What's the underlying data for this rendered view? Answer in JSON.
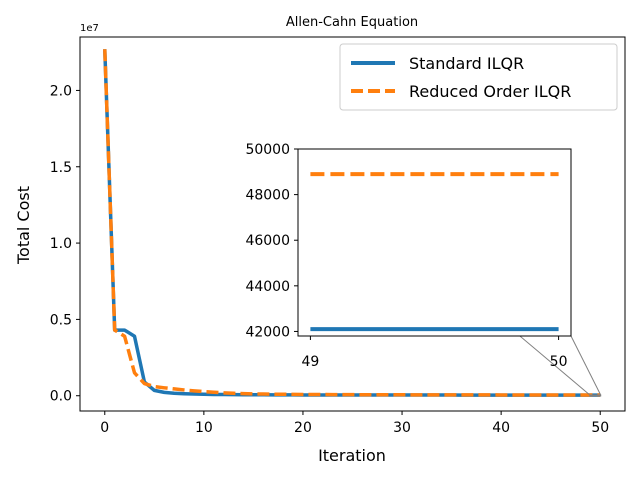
{
  "chart_data": {
    "type": "line",
    "title": "Allen-Cahn Equation",
    "xlabel": "Iteration",
    "ylabel": "Total Cost",
    "offset_text": "1e7",
    "xlim": [
      -2.5,
      52.5
    ],
    "ylim": [
      -0.1,
      2.35
    ],
    "xticks": [
      0,
      10,
      20,
      30,
      40,
      50
    ],
    "yticks": [
      0.0,
      0.5,
      1.0,
      1.5,
      2.0
    ],
    "ytick_labels": [
      "0.0",
      "0.5",
      "1.0",
      "1.5",
      "2.0"
    ],
    "legend_position": "upper-right",
    "grid": false,
    "series": [
      {
        "name": "Standard ILQR",
        "color": "#1f77b4",
        "style": "solid",
        "x": [
          0,
          1,
          2,
          3,
          4,
          5,
          6,
          7,
          8,
          9,
          10,
          11,
          12,
          13,
          14,
          15,
          16,
          17,
          18,
          19,
          20,
          21,
          22,
          23,
          24,
          25,
          26,
          27,
          28,
          29,
          30,
          31,
          32,
          33,
          34,
          35,
          36,
          37,
          38,
          39,
          40,
          41,
          42,
          43,
          44,
          45,
          46,
          47,
          48,
          49,
          50
        ],
        "values": [
          2.27,
          0.43,
          0.43,
          0.39,
          0.09,
          0.035,
          0.022,
          0.016,
          0.013,
          0.011,
          0.0095,
          0.0085,
          0.0078,
          0.0072,
          0.0068,
          0.0064,
          0.0061,
          0.0058,
          0.0056,
          0.0054,
          0.0052,
          0.0051,
          0.005,
          0.0049,
          0.0048,
          0.0047,
          0.0047,
          0.0046,
          0.0046,
          0.0045,
          0.0045,
          0.0045,
          0.0044,
          0.0044,
          0.0044,
          0.0044,
          0.0043,
          0.0043,
          0.0043,
          0.0043,
          0.0043,
          0.0043,
          0.0043,
          0.0042,
          0.0042,
          0.0042,
          0.0042,
          0.0042,
          0.0042,
          0.0042,
          0.0042
        ]
      },
      {
        "name": "Reduced Order ILQR",
        "color": "#ff7f0e",
        "style": "dashed",
        "x": [
          0,
          1,
          2,
          3,
          4,
          5,
          6,
          7,
          8,
          9,
          10,
          11,
          12,
          13,
          14,
          15,
          16,
          17,
          18,
          19,
          20,
          21,
          22,
          23,
          24,
          25,
          26,
          27,
          28,
          29,
          30,
          31,
          32,
          33,
          34,
          35,
          36,
          37,
          38,
          39,
          40,
          41,
          42,
          43,
          44,
          45,
          46,
          47,
          48,
          49,
          50
        ],
        "values": [
          2.27,
          0.43,
          0.39,
          0.15,
          0.08,
          0.06,
          0.052,
          0.045,
          0.038,
          0.032,
          0.027,
          0.023,
          0.019,
          0.016,
          0.014,
          0.012,
          0.011,
          0.01,
          0.0095,
          0.009,
          0.0085,
          0.0081,
          0.0078,
          0.0075,
          0.0072,
          0.007,
          0.0068,
          0.0066,
          0.0064,
          0.0062,
          0.0061,
          0.006,
          0.0059,
          0.0058,
          0.0057,
          0.0056,
          0.0055,
          0.0054,
          0.0053,
          0.0053,
          0.0052,
          0.0052,
          0.0051,
          0.0051,
          0.005,
          0.005,
          0.005,
          0.0049,
          0.0049,
          0.0049,
          0.0049
        ]
      }
    ],
    "inset": {
      "xlim": [
        48.95,
        50.05
      ],
      "ylim": [
        41800,
        50000
      ],
      "xticks": [
        49,
        50
      ],
      "yticks": [
        42000,
        44000,
        46000,
        48000,
        50000
      ],
      "series": [
        {
          "name": "Standard ILQR",
          "x": [
            49,
            50
          ],
          "values": [
            42100,
            42100
          ]
        },
        {
          "name": "Reduced Order ILQR",
          "x": [
            49,
            50
          ],
          "values": [
            48900,
            48900
          ]
        }
      ]
    }
  }
}
